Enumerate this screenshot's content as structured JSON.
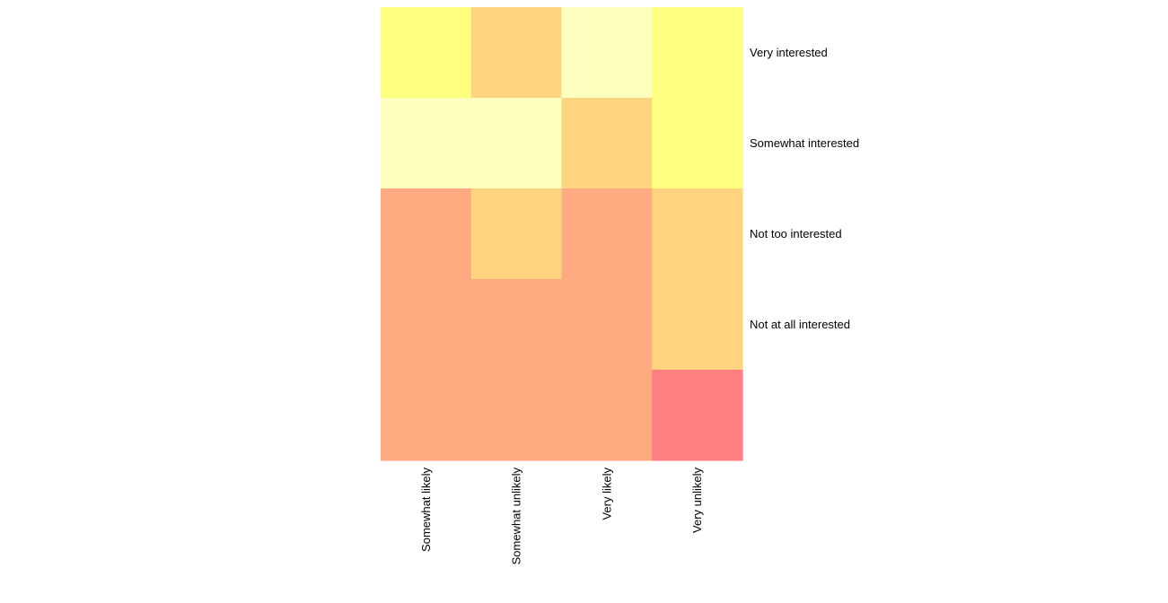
{
  "chart_data": {
    "type": "heatmap",
    "title": "",
    "xlabel": "",
    "ylabel": "",
    "x_categories": [
      "Somewhat likely",
      "Somewhat unlikely",
      "Very likely",
      "Very unlikely"
    ],
    "y_categories": [
      "Very interested",
      "Somewhat interested",
      "Not too interested",
      "Not at all interested",
      ""
    ],
    "color_levels": [
      "#FFFF80",
      "#FFFFC0",
      "#FFD480",
      "#FFAA80",
      "#FF8080"
    ],
    "cells": [
      [
        0,
        2,
        1,
        0
      ],
      [
        1,
        1,
        2,
        0
      ],
      [
        3,
        2,
        3,
        2
      ],
      [
        3,
        3,
        3,
        2
      ],
      [
        3,
        3,
        3,
        4
      ]
    ],
    "legend": "none",
    "grid": false
  }
}
